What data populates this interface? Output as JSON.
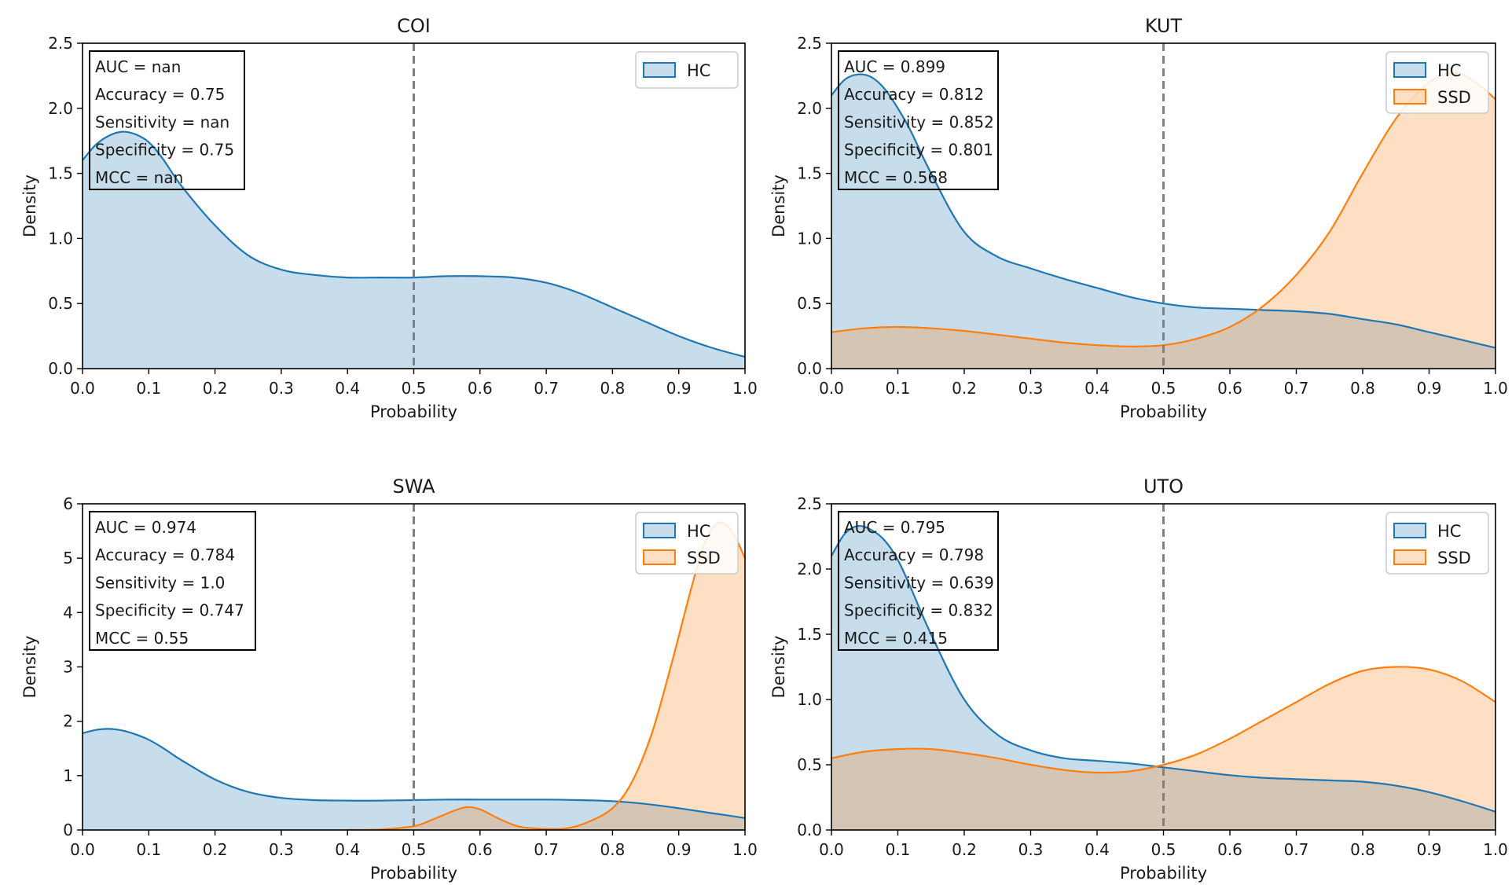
{
  "chart_data": [
    {
      "type": "area",
      "title": "COI",
      "xlabel": "Probability",
      "ylabel": "Density",
      "xlim": [
        0,
        1
      ],
      "ylim": [
        0,
        2.5
      ],
      "xticks": [
        "0.0",
        "0.1",
        "0.2",
        "0.3",
        "0.4",
        "0.5",
        "0.6",
        "0.7",
        "0.8",
        "0.9",
        "1.0"
      ],
      "yticks": [
        "0.0",
        "0.5",
        "1.0",
        "1.5",
        "2.0",
        "2.5"
      ],
      "threshold": 0.5,
      "metrics": [
        "AUC = nan",
        "Accuracy = 0.75",
        "Sensitivity = nan",
        "Specificity = 0.75",
        "MCC = nan"
      ],
      "legend": [
        "HC"
      ],
      "legend_position": "top-right",
      "series": [
        {
          "name": "HC",
          "color": "#1f77b4",
          "fill": "#c6dbec",
          "x": [
            0,
            0.02,
            0.04,
            0.06,
            0.08,
            0.1,
            0.12,
            0.15,
            0.2,
            0.25,
            0.3,
            0.35,
            0.4,
            0.45,
            0.5,
            0.55,
            0.6,
            0.65,
            0.7,
            0.75,
            0.8,
            0.85,
            0.9,
            0.95,
            1.0
          ],
          "y": [
            1.6,
            1.72,
            1.79,
            1.82,
            1.8,
            1.74,
            1.62,
            1.4,
            1.1,
            0.87,
            0.76,
            0.72,
            0.7,
            0.7,
            0.7,
            0.71,
            0.71,
            0.7,
            0.66,
            0.58,
            0.47,
            0.36,
            0.25,
            0.16,
            0.09
          ]
        }
      ]
    },
    {
      "type": "area",
      "title": "KUT",
      "xlabel": "Probability",
      "ylabel": "Density",
      "xlim": [
        0,
        1
      ],
      "ylim": [
        0,
        2.5
      ],
      "xticks": [
        "0.0",
        "0.1",
        "0.2",
        "0.3",
        "0.4",
        "0.5",
        "0.6",
        "0.7",
        "0.8",
        "0.9",
        "1.0"
      ],
      "yticks": [
        "0.0",
        "0.5",
        "1.0",
        "1.5",
        "2.0",
        "2.5"
      ],
      "threshold": 0.5,
      "metrics": [
        "AUC = 0.899",
        "Accuracy = 0.812",
        "Sensitivity = 0.852",
        "Specificity = 0.801",
        "MCC = 0.568"
      ],
      "legend": [
        "HC",
        "SSD"
      ],
      "legend_position": "top-right",
      "series": [
        {
          "name": "HC",
          "color": "#1f77b4",
          "fill": "#c6dbec",
          "x": [
            0,
            0.02,
            0.04,
            0.06,
            0.08,
            0.1,
            0.12,
            0.15,
            0.2,
            0.25,
            0.3,
            0.35,
            0.4,
            0.45,
            0.5,
            0.55,
            0.6,
            0.65,
            0.7,
            0.75,
            0.8,
            0.85,
            0.9,
            0.95,
            1.0
          ],
          "y": [
            2.1,
            2.22,
            2.26,
            2.24,
            2.15,
            2.0,
            1.82,
            1.5,
            1.05,
            0.86,
            0.77,
            0.69,
            0.62,
            0.55,
            0.5,
            0.47,
            0.46,
            0.45,
            0.44,
            0.42,
            0.38,
            0.34,
            0.28,
            0.22,
            0.16
          ]
        },
        {
          "name": "SSD",
          "color": "#ff7f0e",
          "fill": "#fdd0a8",
          "x": [
            0,
            0.05,
            0.1,
            0.15,
            0.2,
            0.25,
            0.3,
            0.35,
            0.4,
            0.45,
            0.5,
            0.55,
            0.6,
            0.65,
            0.7,
            0.75,
            0.8,
            0.85,
            0.9,
            0.94,
            0.97,
            1.0
          ],
          "y": [
            0.28,
            0.31,
            0.32,
            0.31,
            0.29,
            0.26,
            0.23,
            0.2,
            0.18,
            0.17,
            0.18,
            0.23,
            0.32,
            0.48,
            0.72,
            1.05,
            1.5,
            1.92,
            2.2,
            2.27,
            2.2,
            2.07
          ]
        }
      ]
    },
    {
      "type": "area",
      "title": "SWA",
      "xlabel": "Probability",
      "ylabel": "Density",
      "xlim": [
        0,
        1
      ],
      "ylim": [
        0,
        6
      ],
      "xticks": [
        "0.0",
        "0.1",
        "0.2",
        "0.3",
        "0.4",
        "0.5",
        "0.6",
        "0.7",
        "0.8",
        "0.9",
        "1.0"
      ],
      "yticks": [
        "0",
        "1",
        "2",
        "3",
        "4",
        "5",
        "6"
      ],
      "threshold": 0.5,
      "metrics": [
        "AUC = 0.974",
        "Accuracy = 0.784",
        "Sensitivity = 1.0",
        "Specificity = 0.747",
        "MCC = 0.55"
      ],
      "legend": [
        "HC",
        "SSD"
      ],
      "legend_position": "top-right",
      "series": [
        {
          "name": "HC",
          "color": "#1f77b4",
          "fill": "#c6dbec",
          "x": [
            0,
            0.02,
            0.04,
            0.06,
            0.08,
            0.1,
            0.12,
            0.15,
            0.2,
            0.25,
            0.3,
            0.35,
            0.4,
            0.45,
            0.5,
            0.55,
            0.6,
            0.65,
            0.7,
            0.75,
            0.8,
            0.85,
            0.9,
            0.95,
            1.0
          ],
          "y": [
            1.78,
            1.84,
            1.86,
            1.83,
            1.76,
            1.66,
            1.52,
            1.28,
            0.93,
            0.7,
            0.59,
            0.55,
            0.54,
            0.54,
            0.55,
            0.56,
            0.56,
            0.56,
            0.56,
            0.55,
            0.53,
            0.48,
            0.4,
            0.31,
            0.22
          ]
        },
        {
          "name": "SSD",
          "color": "#ff7f0e",
          "fill": "#fdd0a8",
          "x": [
            0.4,
            0.45,
            0.5,
            0.53,
            0.56,
            0.58,
            0.6,
            0.63,
            0.66,
            0.7,
            0.73,
            0.76,
            0.8,
            0.83,
            0.86,
            0.89,
            0.92,
            0.94,
            0.96,
            0.98,
            1.0
          ],
          "y": [
            0,
            0.01,
            0.07,
            0.2,
            0.35,
            0.42,
            0.38,
            0.2,
            0.06,
            0.02,
            0.03,
            0.13,
            0.4,
            0.9,
            1.8,
            3.1,
            4.5,
            5.3,
            5.65,
            5.5,
            5.0
          ]
        }
      ]
    },
    {
      "type": "area",
      "title": "UTO",
      "xlabel": "Probability",
      "ylabel": "Density",
      "xlim": [
        0,
        1
      ],
      "ylim": [
        0,
        2.5
      ],
      "xticks": [
        "0.0",
        "0.1",
        "0.2",
        "0.3",
        "0.4",
        "0.5",
        "0.6",
        "0.7",
        "0.8",
        "0.9",
        "1.0"
      ],
      "yticks": [
        "0.0",
        "0.5",
        "1.0",
        "1.5",
        "2.0",
        "2.5"
      ],
      "threshold": 0.5,
      "metrics": [
        "AUC = 0.795",
        "Accuracy = 0.798",
        "Sensitivity = 0.639",
        "Specificity = 0.832",
        "MCC = 0.415"
      ],
      "legend": [
        "HC",
        "SSD"
      ],
      "legend_position": "top-right",
      "series": [
        {
          "name": "HC",
          "color": "#1f77b4",
          "fill": "#c6dbec",
          "x": [
            0,
            0.02,
            0.04,
            0.06,
            0.08,
            0.1,
            0.12,
            0.15,
            0.2,
            0.25,
            0.3,
            0.35,
            0.4,
            0.45,
            0.5,
            0.55,
            0.6,
            0.65,
            0.7,
            0.75,
            0.8,
            0.85,
            0.9,
            0.95,
            1.0
          ],
          "y": [
            2.1,
            2.27,
            2.33,
            2.3,
            2.22,
            2.07,
            1.85,
            1.5,
            1.0,
            0.73,
            0.61,
            0.55,
            0.53,
            0.51,
            0.48,
            0.45,
            0.42,
            0.4,
            0.39,
            0.38,
            0.37,
            0.34,
            0.29,
            0.22,
            0.14
          ]
        },
        {
          "name": "SSD",
          "color": "#ff7f0e",
          "fill": "#fdd0a8",
          "x": [
            0,
            0.05,
            0.1,
            0.15,
            0.2,
            0.25,
            0.3,
            0.35,
            0.4,
            0.45,
            0.5,
            0.55,
            0.6,
            0.65,
            0.7,
            0.75,
            0.8,
            0.85,
            0.9,
            0.95,
            1.0
          ],
          "y": [
            0.55,
            0.6,
            0.62,
            0.62,
            0.59,
            0.55,
            0.5,
            0.46,
            0.44,
            0.45,
            0.5,
            0.58,
            0.7,
            0.84,
            0.98,
            1.12,
            1.22,
            1.25,
            1.23,
            1.14,
            0.98
          ]
        }
      ]
    }
  ]
}
